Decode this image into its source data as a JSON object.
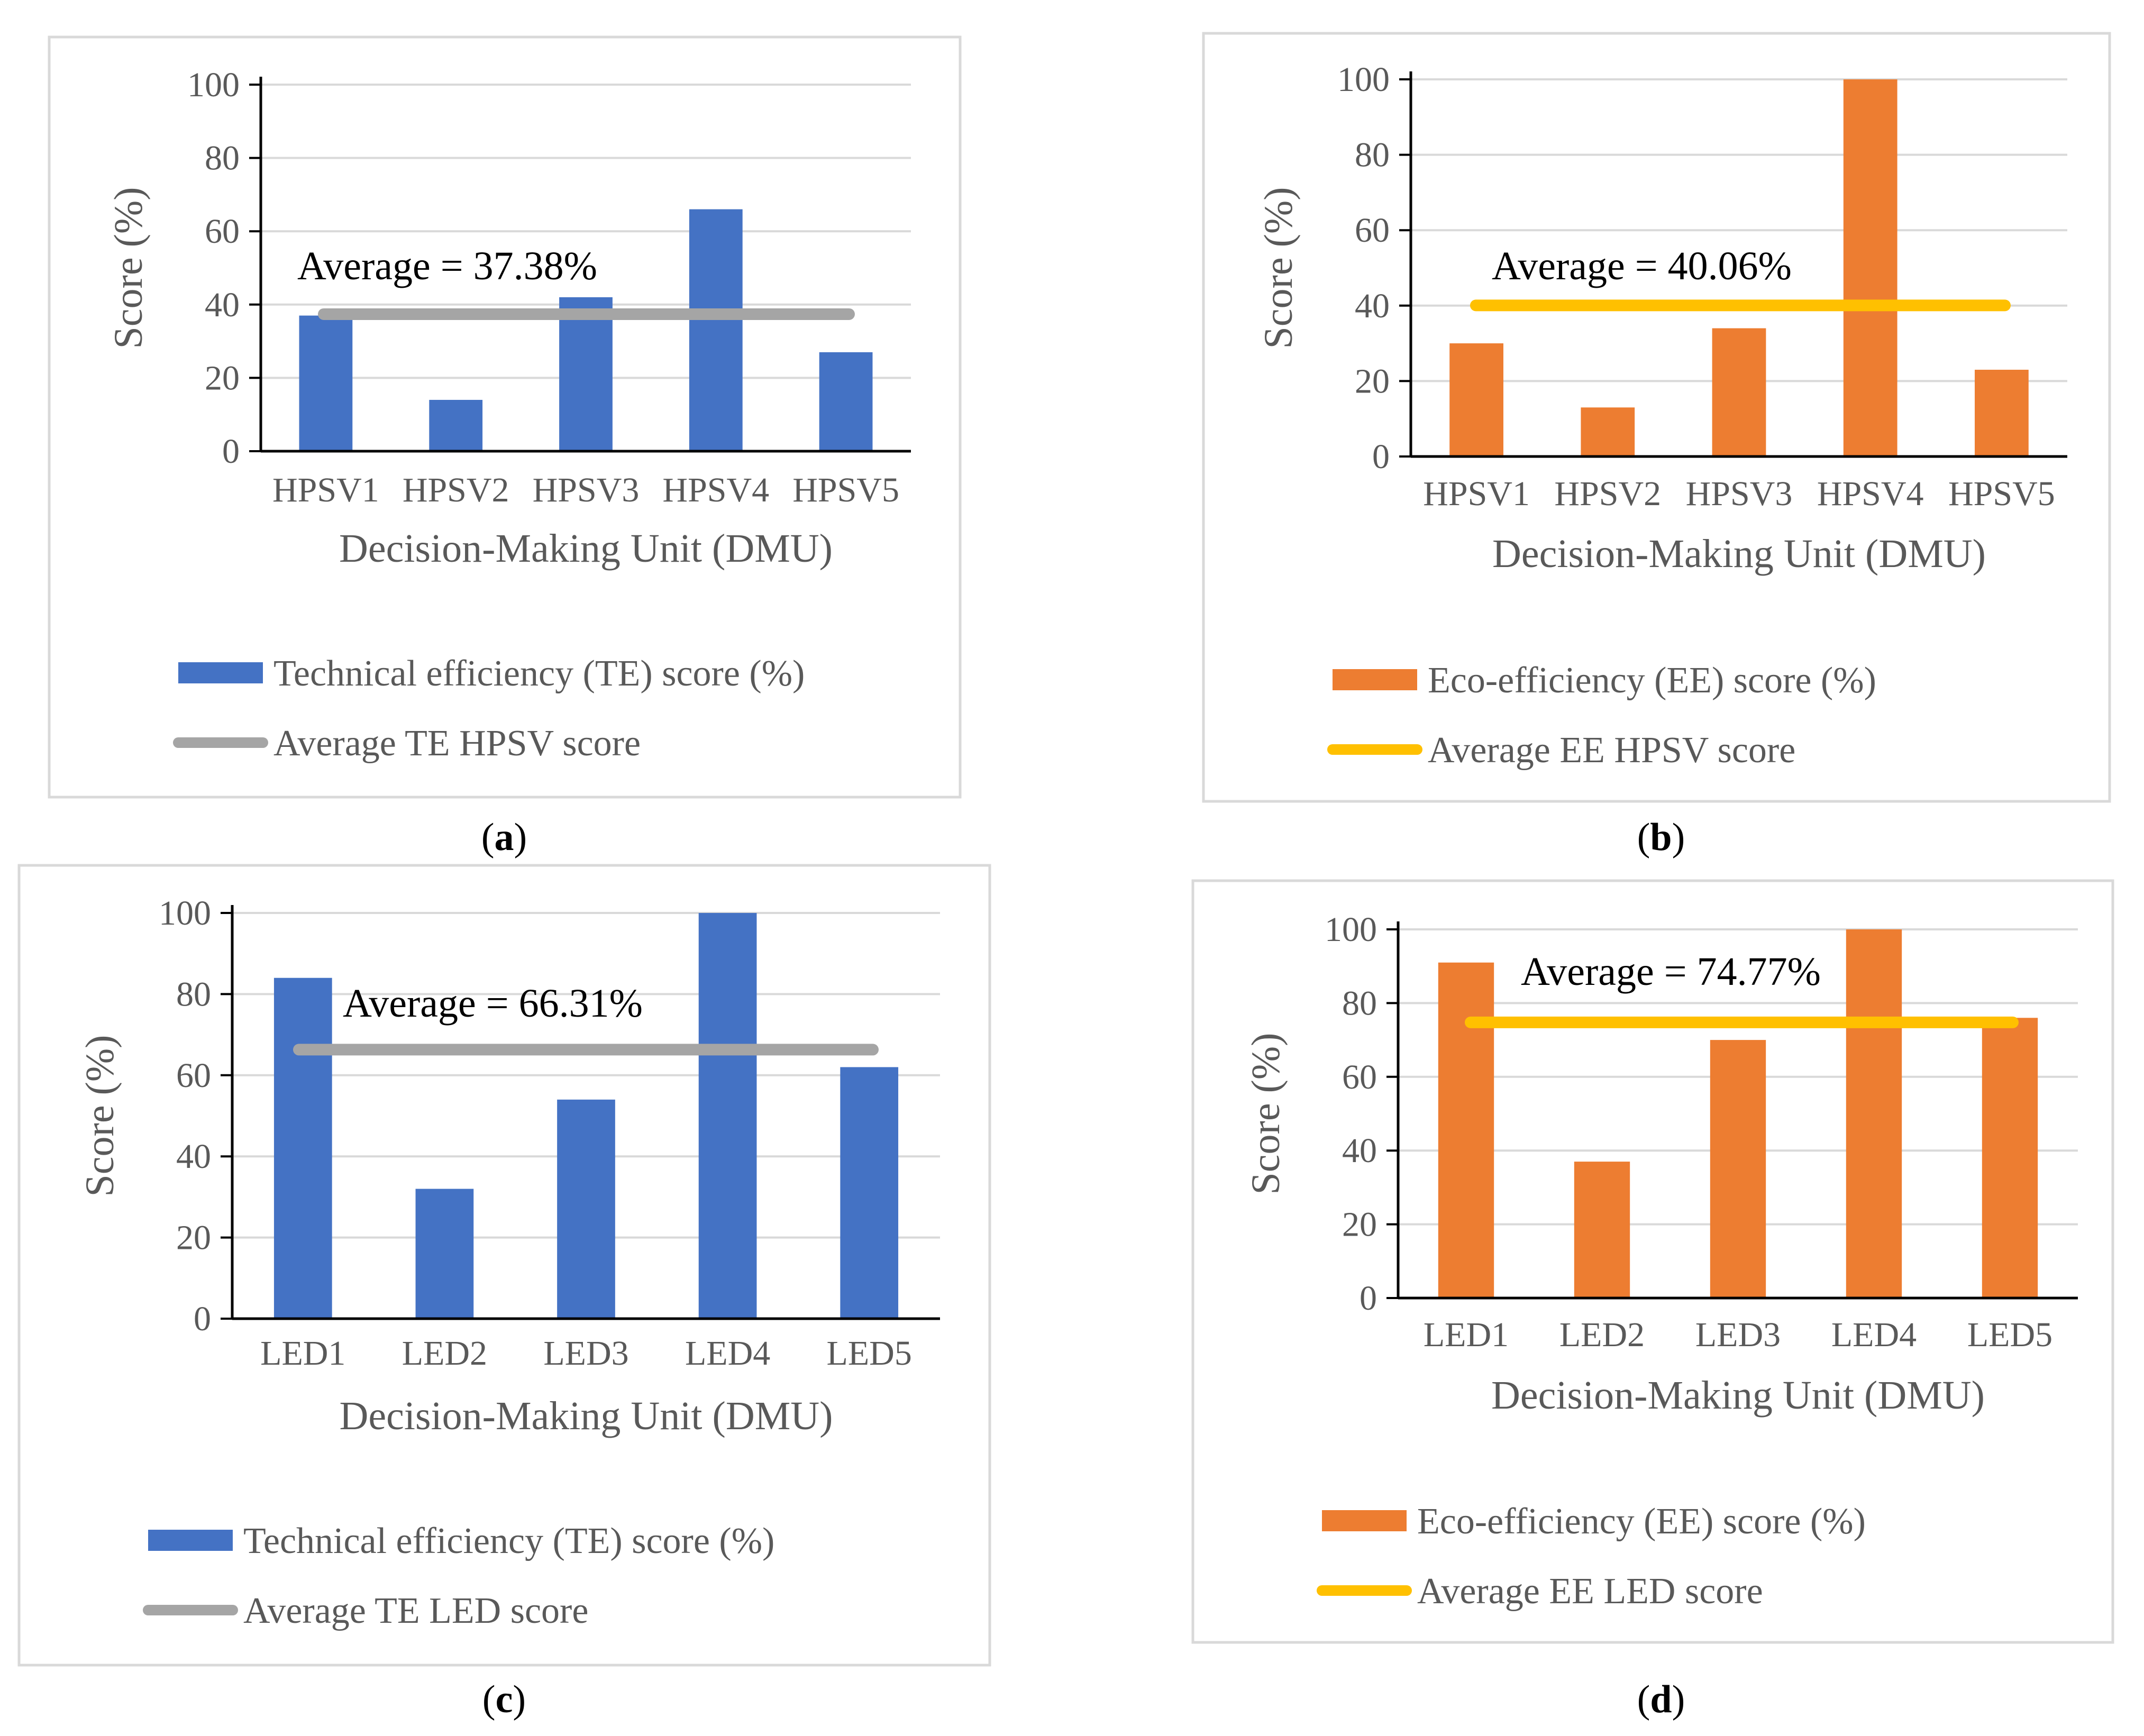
{
  "figure": {
    "panel_captions": [
      "a",
      "b",
      "c",
      "d"
    ]
  },
  "chart_data": [
    {
      "panel": "a",
      "type": "bar",
      "categories": [
        "HPSV1",
        "HPSV2",
        "HPSV3",
        "HPSV4",
        "HPSV5"
      ],
      "series": [
        {
          "name": "Technical efficiency (TE) score (%)",
          "kind": "bar",
          "color": "#4472C4",
          "values": [
            37,
            14,
            42,
            66,
            27
          ]
        },
        {
          "name": "Average TE HPSV score",
          "kind": "line",
          "color": "#A5A5A5",
          "values": [
            37.38,
            37.38,
            37.38,
            37.38,
            37.38
          ]
        }
      ],
      "annotation": "Average = 37.38%",
      "xlabel": "Decision-Making Unit (DMU)",
      "ylabel": "Score (%)",
      "yticks": [
        "0",
        "20",
        "40",
        "60",
        "80",
        "100"
      ],
      "ylim": [
        0,
        100
      ],
      "grid": true,
      "legend": "bottom"
    },
    {
      "panel": "b",
      "type": "bar",
      "categories": [
        "HPSV1",
        "HPSV2",
        "HPSV3",
        "HPSV4",
        "HPSV5"
      ],
      "series": [
        {
          "name": "Eco-efficiency (EE) score (%)",
          "kind": "bar",
          "color": "#ED7D31",
          "values": [
            30,
            13,
            34,
            100,
            23
          ]
        },
        {
          "name": "Average EE HPSV score",
          "kind": "line",
          "color": "#FFC000",
          "values": [
            40.06,
            40.06,
            40.06,
            40.06,
            40.06
          ]
        }
      ],
      "annotation": "Average = 40.06%",
      "xlabel": "Decision-Making Unit (DMU)",
      "ylabel": "Score (%)",
      "yticks": [
        "0",
        "20",
        "40",
        "60",
        "80",
        "100"
      ],
      "ylim": [
        0,
        100
      ],
      "grid": true,
      "legend": "bottom"
    },
    {
      "panel": "c",
      "type": "bar",
      "categories": [
        "LED1",
        "LED2",
        "LED3",
        "LED4",
        "LED5"
      ],
      "series": [
        {
          "name": "Technical efficiency (TE) score (%)",
          "kind": "bar",
          "color": "#4472C4",
          "values": [
            84,
            32,
            54,
            100,
            62
          ]
        },
        {
          "name": "Average TE LED score",
          "kind": "line",
          "color": "#A5A5A5",
          "values": [
            66.31,
            66.31,
            66.31,
            66.31,
            66.31
          ]
        }
      ],
      "annotation": "Average = 66.31%",
      "xlabel": "Decision-Making Unit (DMU)",
      "ylabel": "Score (%)",
      "yticks": [
        "0",
        "20",
        "40",
        "60",
        "80",
        "100"
      ],
      "ylim": [
        0,
        100
      ],
      "grid": true,
      "legend": "bottom"
    },
    {
      "panel": "d",
      "type": "bar",
      "categories": [
        "LED1",
        "LED2",
        "LED3",
        "LED4",
        "LED5"
      ],
      "series": [
        {
          "name": "Eco-efficiency (EE) score (%)",
          "kind": "bar",
          "color": "#ED7D31",
          "values": [
            91,
            37,
            70,
            100,
            76
          ]
        },
        {
          "name": "Average EE LED score",
          "kind": "line",
          "color": "#FFC000",
          "values": [
            74.77,
            74.77,
            74.77,
            74.77,
            74.77
          ]
        }
      ],
      "annotation": "Average = 74.77%",
      "xlabel": "Decision-Making Unit (DMU)",
      "ylabel": "Score (%)",
      "yticks": [
        "0",
        "20",
        "40",
        "60",
        "80",
        "100"
      ],
      "ylim": [
        0,
        100
      ],
      "grid": true,
      "legend": "bottom"
    }
  ]
}
